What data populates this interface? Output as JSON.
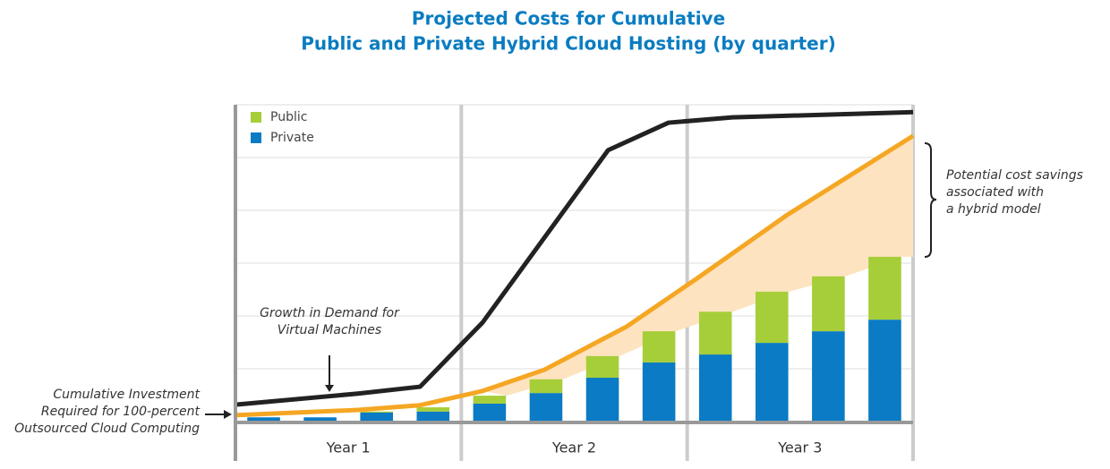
{
  "chart_data": {
    "type": "bar",
    "stacked": true,
    "title": [
      "Projected Costs for Cumulative",
      "Public and Private Hybrid Cloud Hosting (by quarter)"
    ],
    "categories": [
      null,
      null,
      null,
      null,
      null,
      null,
      null,
      null,
      null,
      null,
      null,
      null
    ],
    "groups": [
      "Year 1",
      "Year 2",
      "Year 3"
    ],
    "series": [
      {
        "name": "Private",
        "color": "#0a7bc4",
        "values": [
          0.08,
          0.08,
          0.17,
          0.19,
          0.34,
          0.54,
          0.83,
          1.12,
          1.27,
          1.49,
          1.71,
          1.93
        ]
      },
      {
        "name": "Public",
        "color": "#a6ce39",
        "values": [
          0,
          0,
          0.02,
          0.08,
          0.15,
          0.26,
          0.41,
          0.59,
          0.81,
          0.97,
          1.04,
          1.19
        ]
      }
    ],
    "lines": [
      {
        "color": "#222222",
        "x": [
          0,
          2.17,
          3.27,
          4.38,
          6.6,
          7.67,
          8.8,
          12
        ],
        "values": [
          0.32,
          0.53,
          0.66,
          1.88,
          5.14,
          5.66,
          5.76,
          5.86
        ]
      },
      {
        "color": "#f5a623",
        "x": [
          0,
          2.17,
          3.27,
          4.38,
          5.47,
          6.93,
          8.2,
          9.78,
          12
        ],
        "values": [
          0.12,
          0.22,
          0.31,
          0.58,
          0.98,
          1.8,
          2.73,
          3.92,
          5.41
        ]
      }
    ],
    "savings_color": "#fde3c0",
    "xlim": [
      0,
      12
    ],
    "ylim": [
      0,
      6
    ],
    "yticks": [
      0,
      1,
      2,
      3,
      4,
      5,
      6
    ],
    "grid": true,
    "legend": "upper left",
    "legend_order": [
      1,
      0
    ],
    "annotations": [
      {
        "lines": [
          "Growth in Demand for",
          "Virtual Machines"
        ]
      },
      {
        "lines": [
          "Cumulative Investment",
          "Required for 100-percent",
          "Outsourced Cloud Computing"
        ]
      },
      {
        "lines": [
          "Potential cost savings",
          "associated with",
          "a hybrid model"
        ]
      }
    ]
  }
}
